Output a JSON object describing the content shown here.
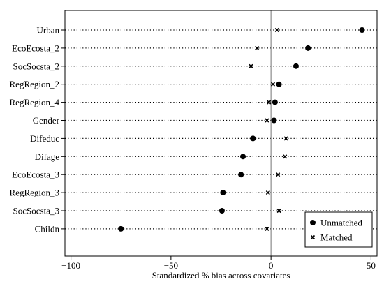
{
  "chart_data": {
    "type": "scatter",
    "title": "",
    "xlabel": "Standardized % bias across covariates",
    "ylabel": "",
    "xlim": [
      -103,
      53
    ],
    "xticks": [
      -100,
      -50,
      0,
      50
    ],
    "xtick_labels": [
      "−100",
      "−50",
      "0",
      "50"
    ],
    "reference_line_x": 0,
    "categories": [
      "Urban",
      "EcoEcosta_2",
      "SocSocsta_2",
      "RegRegion_2",
      "RegRegion_4",
      "Gender",
      "Difeduc",
      "Difage",
      "EcoEcosta_3",
      "RegRegion_3",
      "SocSocsta_3",
      "Childn"
    ],
    "series": [
      {
        "name": "Unmatched",
        "marker": "dot",
        "values": [
          45.5,
          18.5,
          12.5,
          4.0,
          2.0,
          1.5,
          -9.0,
          -14.0,
          -15.0,
          -24.0,
          -24.5,
          -75.0
        ]
      },
      {
        "name": "Matched",
        "marker": "x",
        "values": [
          3.0,
          -7.0,
          -10.0,
          1.0,
          -1.0,
          -2.0,
          7.5,
          7.0,
          3.5,
          -1.5,
          4.0,
          -2.0
        ]
      }
    ],
    "legend_position": "bottom-right",
    "grid": false,
    "colors": {
      "marker": "#000000",
      "reference_line": "#8c8c8c",
      "guide": "#000000"
    }
  }
}
